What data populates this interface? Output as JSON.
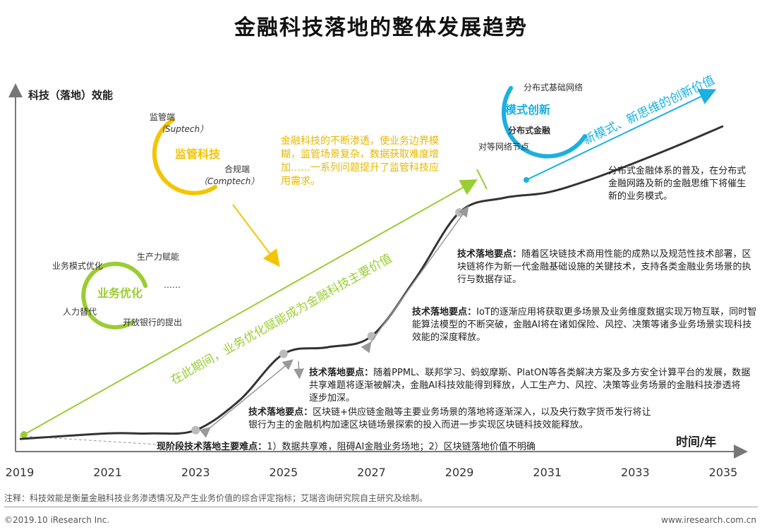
{
  "title": "金融科技落地的整体发展趋势",
  "chart_data": {
    "type": "line",
    "ylabel": "科技（落地）效能",
    "xlabel": "时间/年",
    "x_ticks": [
      "2019",
      "2021",
      "2023",
      "2025",
      "2027",
      "2029",
      "2031",
      "2033",
      "2035"
    ],
    "xlim": [
      2019,
      2035
    ],
    "series": [
      {
        "x": [
          2019,
          2021,
          2022,
          2023,
          2024,
          2025,
          2026,
          2027,
          2028,
          2029,
          2030,
          2031,
          2032,
          2033,
          2034,
          2035
        ],
        "y": [
          0.5,
          1.0,
          1.0,
          1.3,
          4.0,
          8.2,
          8.8,
          9.8,
          15.0,
          21.0,
          22.3,
          22.8,
          24.0,
          25.5,
          27.1,
          28.8
        ]
      }
    ],
    "milestones": [
      2023,
      2025,
      2027,
      2029
    ],
    "trend_arrow_labels": [
      "在此期间，业务优化赋能成为金融科技主要价值",
      "新模式、新思维的创新价值"
    ],
    "annotations": [
      {
        "heading": "现阶段技术落地主要难点：",
        "text": "1）数据共享难，阻碍AI金融业务场地；2）区块链落地价值不明确"
      },
      {
        "heading": "技术落地要点：",
        "text": "区块链+供应链金融等主要业务场景的落地将逐渐深入，以及央行数字货币发行将让银行为主的金融机构加速区块链场景探索的投入而进一步实现区块链科技效能释放。"
      },
      {
        "heading": "技术落地要点：",
        "text": "随着PPML、联邦学习、蚂蚁摩斯、PlatON等各类解决方案及多方安全计算平台的发展，数据共享难题将逐渐被解决，金融AI科技效能得到释放，人工生产力、风控、决策等业务场景的金融科技渗透将逐步加深。"
      },
      {
        "heading": "技术落地要点：",
        "text": "IoT的逐渐应用将获取更多场景及业务维度数据实现万物互联，同时智能算法模型的不断突破，金融AI将在诸如保险、风控、决策等诸多业务场景实现科技效能的深度释放。"
      },
      {
        "heading": "技术落地要点：",
        "text": "随着区块链技术商用性能的成熟以及规范性技术部署，区块链将作为新一代金融基础设施的关键技术，支持各类金融业务场景的执行与数据存证。"
      }
    ],
    "yellow_note": "金融科技的不断渗透，使业务边界模糊，监管场景复杂，数据获取难度增加……一系列问题提升了监管科技应用需求。",
    "dark_note": "分布式金融体系的普及，在分布式金融网路及新的金融思维下将催生新的业务模式。",
    "circles": [
      {
        "name": "业务优化",
        "color": "#9acd32",
        "items": [
          "业务模式优化",
          "生产力赋能",
          "……",
          "人力替代",
          "开放银行的提出"
        ]
      },
      {
        "name": "监管科技",
        "color": "#f5c400",
        "items": [
          "监管端",
          "（Suptech）",
          "合规端",
          "（Comptech）"
        ]
      },
      {
        "name": "模式创新",
        "color": "#1ab0e0",
        "items": [
          "分布式基础网络",
          "分布式金融",
          "对等网络节点"
        ]
      }
    ]
  },
  "footnote": "注释：科技效能是衡量金融科技业务渗透情况及产生业务价值的综合评定指标；艾瑞咨询研究院自主研究及绘制。",
  "copyright": "©2019.10 iResearch Inc.",
  "website": "www.iresearch.com.cn",
  "colors": {
    "green": "#9acd32",
    "yellow": "#f5c400",
    "blue": "#1ab0e0",
    "curve": "#333333",
    "annotation_bg": "#ffffff"
  }
}
